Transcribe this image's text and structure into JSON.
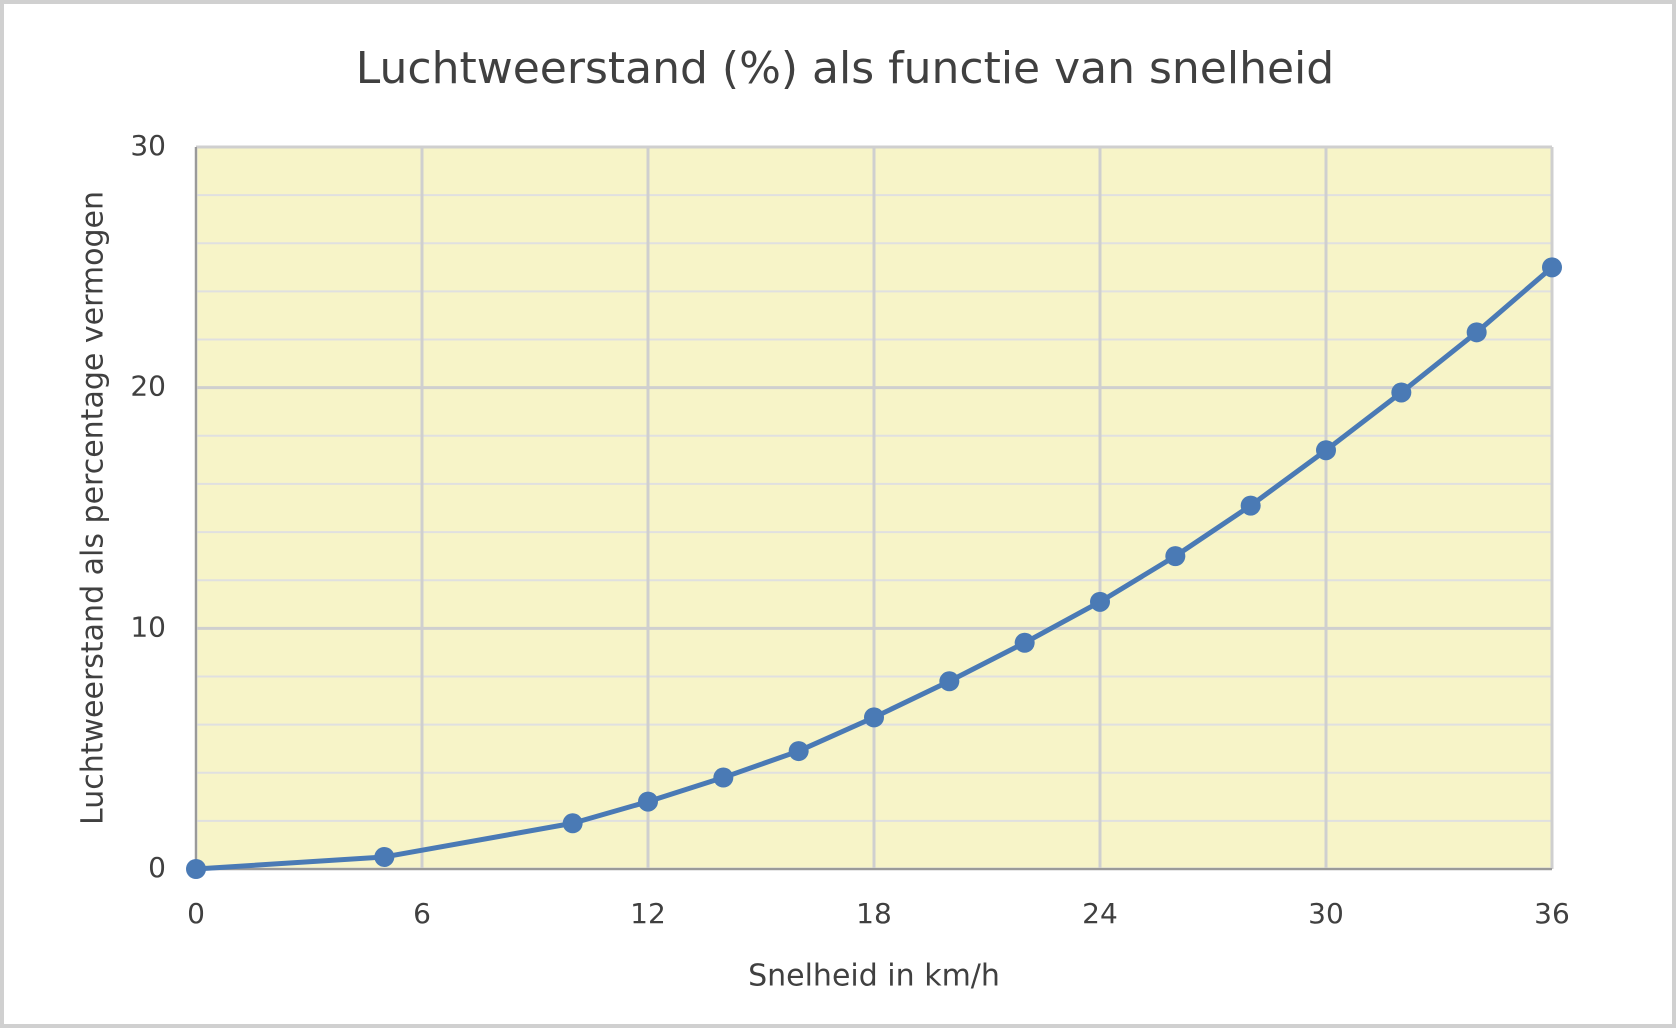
{
  "chart_data": {
    "type": "line",
    "title": "Luchtweerstand (%) als functie van snelheid",
    "x_label": "Snelheid in km/h",
    "y_label": "Luchtweerstand als percentage vermogen",
    "series": [
      {
        "name": "Luchtweerstand",
        "color": "#4a7ab5",
        "x": [
          0,
          5,
          10,
          12,
          14,
          16,
          18,
          20,
          22,
          24,
          26,
          28,
          30,
          32,
          34,
          36
        ],
        "values": [
          0,
          0.5,
          1.9,
          2.8,
          3.8,
          4.9,
          6.3,
          7.8,
          9.4,
          11.1,
          13.0,
          15.1,
          17.4,
          19.8,
          22.3,
          25.0
        ]
      }
    ],
    "xlim": [
      0,
      36
    ],
    "xticks": [
      0,
      6,
      12,
      18,
      24,
      30,
      36
    ],
    "ylim": [
      0,
      30
    ],
    "yticks": [
      0,
      10,
      20,
      30
    ],
    "minor_grid_step": 2,
    "grid": true,
    "plot_background": "#f7f4c8"
  }
}
